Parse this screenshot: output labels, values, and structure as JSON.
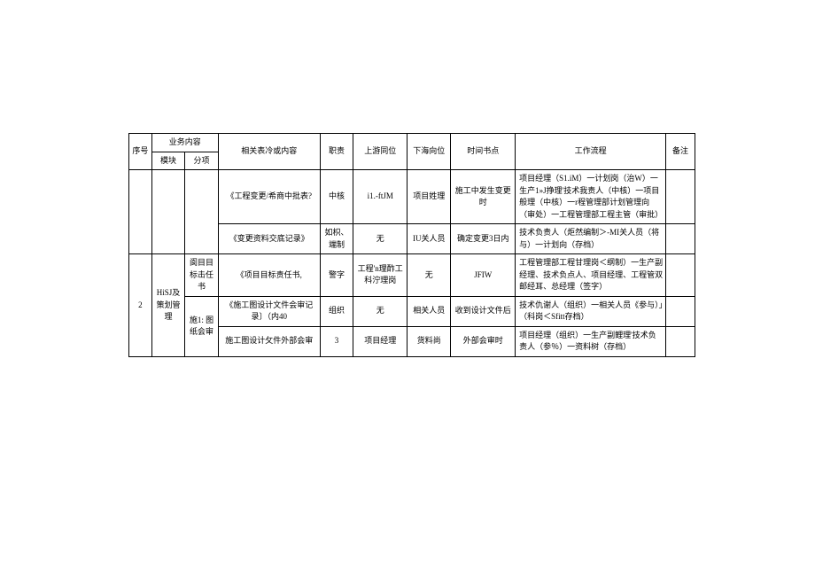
{
  "header": {
    "seq": "序号",
    "biz": "业务内容",
    "module": "模块",
    "sub": "分项",
    "form": "相关表冷或内容",
    "duty": "职责",
    "up": "上游同位",
    "down": "下海向位",
    "time": "时间书点",
    "flow": "工作流程",
    "remark": "备注"
  },
  "rows": [
    {
      "form": "《工程变更/希商中批表?",
      "duty": "中核",
      "up": "i1.-ftJM",
      "down": "项目姓理",
      "time": "施工中发生变更时",
      "flow": "项目经理（S1.iM）一计划岗（治W）一生产1»J挣理'技术我责人（中核）一项目般理（中核）一r程管理部计划管理向（审处）一工程管理部工程主管（审批）"
    },
    {
      "form": "《变更资料交底记录》",
      "duty": "如枳、端制",
      "up": "无",
      "down": "IU关人员",
      "time": "确定变更3日内",
      "flow": "技术负责人（炬然编制＞-MI关人员（将与）一计划向（存档）"
    },
    {
      "seq": "2",
      "module": "HiSJ及策划管理",
      "sub1": "阆目目标击任书",
      "form": "《项目目标责任书,",
      "duty": "警字",
      "up": "工程'n理酢工科泞理岗",
      "down": "无",
      "time": "JFIW",
      "flow": "工程管理部工程甘理岗＜纲制）一生产副经理、技术负点人、项目经理、工程管双邮经耳、总经理（签字）"
    },
    {
      "sub2": "施1: 图纸会审",
      "form": "《施工图设计文件会审记录〕（内40",
      "duty": "组织",
      "up": "无",
      "down": "相关人员",
      "time": "收到设计文件后",
      "flow": "技术仇谢人（组织）一相关人员《参与）」（科岗＜Sfitt存档）"
    },
    {
      "form": "施工图设计攵件外部会审",
      "duty": "3",
      "up": "项目经理",
      "down": "货料尚",
      "time": "外部会审时",
      "flow": "项目经理（组织）一生产副鲤理'技术负责人（参％）一资料树（存档）"
    }
  ]
}
